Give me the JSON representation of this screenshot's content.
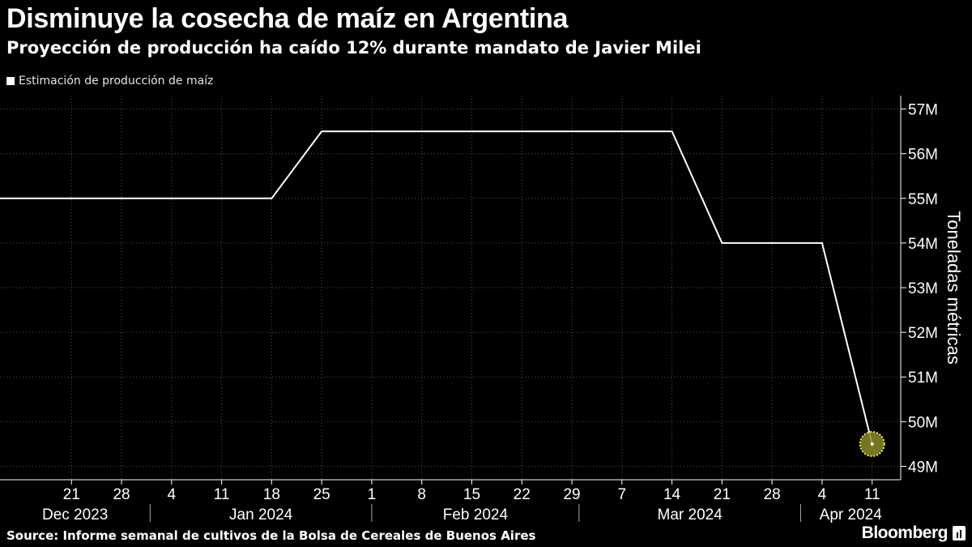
{
  "header": {
    "title": "Disminuye la cosecha de maíz en Argentina",
    "subtitle": "Proyección de producción ha caído 12% durante mandato de Javier Milei"
  },
  "footer": {
    "source": "Source: Informe semanal de cultivos de la Bolsa de Cereales de Buenos Aires",
    "brand": "Bloomberg",
    "brand_icon": "bloomberg-chart-icon"
  },
  "colors": {
    "background": "#000000",
    "line": "#ffffff",
    "grid": "#555555",
    "highlight": "#8a8a2a",
    "highlight_ring": "#e8e060"
  },
  "chart_data": {
    "type": "line",
    "legend_position": "top-left",
    "grid": true,
    "ylabel": "Toneladas métricas",
    "y_axis_side": "right",
    "ylim": [
      48.7,
      57.3
    ],
    "yticks": [
      49,
      50,
      51,
      52,
      53,
      54,
      55,
      56,
      57
    ],
    "ytick_labels": [
      "49M",
      "50M",
      "51M",
      "52M",
      "53M",
      "54M",
      "55M",
      "56M",
      "57M"
    ],
    "xlim": [
      "2023-12-11",
      "2024-04-15"
    ],
    "xticks": [
      "2023-12-21",
      "2023-12-28",
      "2024-01-04",
      "2024-01-11",
      "2024-01-18",
      "2024-01-25",
      "2024-02-01",
      "2024-02-08",
      "2024-02-15",
      "2024-02-22",
      "2024-02-29",
      "2024-03-07",
      "2024-03-14",
      "2024-03-21",
      "2024-03-28",
      "2024-04-04",
      "2024-04-11"
    ],
    "xtick_labels": [
      "21",
      "28",
      "4",
      "11",
      "18",
      "25",
      "1",
      "8",
      "15",
      "22",
      "29",
      "7",
      "14",
      "21",
      "28",
      "4",
      "11"
    ],
    "months": [
      {
        "label": "Dec 2023",
        "start": "2023-12-11",
        "end": "2024-01-01"
      },
      {
        "label": "Jan 2024",
        "start": "2024-01-01",
        "end": "2024-02-01"
      },
      {
        "label": "Feb 2024",
        "start": "2024-02-01",
        "end": "2024-03-01"
      },
      {
        "label": "Mar 2024",
        "start": "2024-03-01",
        "end": "2024-04-01"
      },
      {
        "label": "Apr 2024",
        "start": "2024-04-01",
        "end": "2024-04-15"
      }
    ],
    "series": [
      {
        "name": "Estimación de producción de maíz",
        "x": [
          "2023-12-11",
          "2024-01-18",
          "2024-01-25",
          "2024-03-14",
          "2024-03-21",
          "2024-04-04",
          "2024-04-11"
        ],
        "values": [
          55,
          55,
          56.5,
          56.5,
          54,
          54,
          49.5
        ]
      }
    ],
    "highlight_point": {
      "x": "2024-04-11",
      "y": 49.5
    }
  }
}
